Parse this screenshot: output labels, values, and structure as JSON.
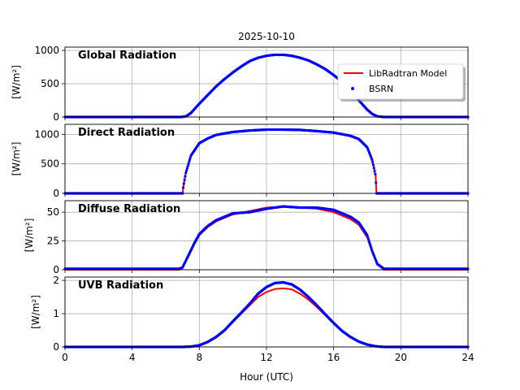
{
  "figure": {
    "suptitle": "2025-10-10",
    "xlabel": "Hour (UTC)",
    "legend": {
      "location": "top-right of first panel",
      "entries": [
        {
          "label": "LibRadtran Model",
          "color": "#ff0000",
          "style": "line"
        },
        {
          "label": "BSRN",
          "color": "#0000ff",
          "style": "marker"
        }
      ]
    }
  },
  "colors": {
    "model": "#ff0000",
    "measured": "#0000ff",
    "panel_label": "#ffa500",
    "grid": "#b0b0b0"
  },
  "chart_data": [
    {
      "type": "line",
      "panel_label": "Global Radiation",
      "ylabel": "[W/m²]",
      "xlim": [
        0,
        24
      ],
      "ylim": [
        0,
        1050
      ],
      "xticks": [
        0,
        4,
        8,
        12,
        16,
        20,
        24
      ],
      "yticks": [
        0,
        500,
        1000
      ],
      "grid": true,
      "x": [
        0,
        6.9,
        7.2,
        7.5,
        8,
        8.5,
        9,
        9.5,
        10,
        10.5,
        11,
        11.5,
        12,
        12.5,
        13,
        13.5,
        14,
        14.5,
        15,
        15.5,
        16,
        16.5,
        17,
        17.5,
        18,
        18.3,
        18.6,
        19,
        24
      ],
      "series": [
        {
          "name": "LibRadtran Model",
          "values": [
            0,
            0,
            10,
            60,
            200,
            330,
            460,
            570,
            670,
            760,
            840,
            890,
            920,
            935,
            935,
            920,
            890,
            850,
            790,
            720,
            630,
            530,
            400,
            250,
            110,
            45,
            10,
            0,
            0
          ]
        },
        {
          "name": "BSRN",
          "values": [
            0,
            0,
            10,
            60,
            200,
            330,
            460,
            570,
            670,
            760,
            840,
            890,
            920,
            935,
            935,
            920,
            890,
            850,
            790,
            720,
            630,
            530,
            400,
            250,
            110,
            45,
            10,
            0,
            0
          ]
        }
      ]
    },
    {
      "type": "line",
      "panel_label": "Direct Radiation",
      "ylabel": "[W/m²]",
      "xlim": [
        0,
        24
      ],
      "ylim": [
        0,
        1170
      ],
      "xticks": [
        0,
        4,
        8,
        12,
        16,
        20,
        24
      ],
      "yticks": [
        0,
        500,
        1000
      ],
      "grid": true,
      "x": [
        0,
        7.0,
        7.05,
        7.2,
        7.5,
        8,
        8.5,
        9,
        10,
        11,
        12,
        13,
        14,
        15,
        16,
        17,
        17.5,
        18,
        18.3,
        18.5,
        18.55,
        24
      ],
      "series": [
        {
          "name": "LibRadtran Model",
          "values": [
            0,
            0,
            120,
            350,
            640,
            850,
            930,
            990,
            1040,
            1065,
            1080,
            1080,
            1075,
            1055,
            1030,
            975,
            920,
            780,
            560,
            300,
            0,
            0
          ]
        },
        {
          "name": "BSRN",
          "values": [
            0,
            0,
            120,
            350,
            640,
            850,
            930,
            990,
            1040,
            1065,
            1080,
            1080,
            1075,
            1055,
            1030,
            975,
            920,
            780,
            560,
            300,
            0,
            0
          ]
        }
      ]
    },
    {
      "type": "line",
      "panel_label": "Diffuse Radiation",
      "ylabel": "[W/m²]",
      "xlim": [
        0,
        24
      ],
      "ylim": [
        0,
        60
      ],
      "xticks": [
        0,
        4,
        8,
        12,
        16,
        20,
        24
      ],
      "yticks": [
        0,
        25,
        50
      ],
      "grid": true,
      "x": [
        0,
        6.8,
        7.0,
        7.3,
        7.7,
        8,
        8.5,
        9,
        9.5,
        10,
        11,
        12,
        13,
        14,
        15,
        16,
        16.5,
        17,
        17.5,
        18,
        18.3,
        18.6,
        19,
        24
      ],
      "series": [
        {
          "name": "LibRadtran Model",
          "values": [
            0,
            0,
            2,
            10,
            22,
            30,
            37,
            42,
            45,
            48,
            51,
            54,
            55,
            54,
            53,
            50,
            47,
            44,
            39,
            28,
            15,
            5,
            0,
            0
          ]
        },
        {
          "name": "BSRN",
          "values": [
            0.8,
            0.8,
            2,
            11,
            23,
            31,
            38,
            43,
            46,
            49,
            50,
            53,
            55,
            54,
            54,
            52,
            49,
            46,
            41,
            30,
            16,
            5,
            0.8,
            0.8
          ]
        }
      ]
    },
    {
      "type": "line",
      "panel_label": "UVB Radiation",
      "ylabel": "[W/m²]",
      "xlim": [
        0,
        24
      ],
      "ylim": [
        0,
        2.1
      ],
      "xticks": [
        0,
        4,
        8,
        12,
        16,
        20,
        24
      ],
      "yticks": [
        0,
        1,
        2
      ],
      "grid": true,
      "x": [
        0,
        7,
        7.5,
        8,
        8.5,
        9,
        9.5,
        10,
        10.5,
        11,
        11.5,
        12,
        12.5,
        13,
        13.5,
        14,
        14.5,
        15,
        15.5,
        16,
        16.5,
        17,
        17.5,
        18,
        18.5,
        19,
        24
      ],
      "series": [
        {
          "name": "LibRadtran Model",
          "values": [
            0,
            0,
            0.01,
            0.05,
            0.15,
            0.3,
            0.5,
            0.75,
            1.0,
            1.25,
            1.5,
            1.65,
            1.74,
            1.76,
            1.73,
            1.6,
            1.42,
            1.2,
            0.95,
            0.7,
            0.48,
            0.3,
            0.16,
            0.07,
            0.02,
            0,
            0
          ]
        },
        {
          "name": "BSRN",
          "values": [
            0,
            0,
            0.01,
            0.05,
            0.15,
            0.3,
            0.5,
            0.77,
            1.03,
            1.3,
            1.6,
            1.8,
            1.92,
            1.94,
            1.88,
            1.72,
            1.5,
            1.25,
            0.98,
            0.72,
            0.48,
            0.3,
            0.16,
            0.07,
            0.02,
            0,
            0
          ]
        }
      ]
    }
  ]
}
